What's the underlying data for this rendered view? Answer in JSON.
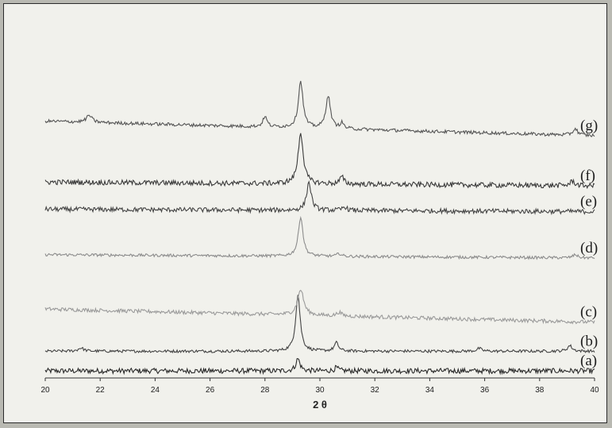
{
  "chart_data": {
    "type": "line",
    "title": "",
    "xlabel": "2 θ",
    "ylabel": "",
    "xlim": [
      20,
      40
    ],
    "xticks": [
      20,
      22,
      24,
      26,
      28,
      30,
      32,
      34,
      36,
      38,
      40
    ],
    "grid": false,
    "legend": "none",
    "series": [
      {
        "name": "(a)",
        "color": "#2a2a2a",
        "baseline": 0.5,
        "noise": 1.1,
        "slope": 0.0,
        "peaks": [
          {
            "x": 29.2,
            "h": 2.6,
            "w": 0.09
          },
          {
            "x": 30.6,
            "h": 0.7,
            "w": 0.08
          }
        ]
      },
      {
        "name": "(b)",
        "color": "#444444",
        "baseline": 4.7,
        "noise": 0.6,
        "slope": 0.0,
        "peaks": [
          {
            "x": 21.3,
            "h": 0.7,
            "w": 0.12
          },
          {
            "x": 29.2,
            "h": 12.0,
            "w": 0.1
          },
          {
            "x": 30.6,
            "h": 1.8,
            "w": 0.09
          },
          {
            "x": 35.8,
            "h": 0.6,
            "w": 0.1
          },
          {
            "x": 39.1,
            "h": 1.2,
            "w": 0.1
          }
        ]
      },
      {
        "name": "(c)",
        "color": "#9a9a9a",
        "baseline": 13.7,
        "noise": 0.8,
        "slope": -2.8,
        "peaks": [
          {
            "x": 29.3,
            "h": 5.5,
            "w": 0.13
          },
          {
            "x": 30.7,
            "h": 0.8,
            "w": 0.1
          }
        ]
      },
      {
        "name": "(d)",
        "color": "#8c8c8c",
        "baseline": 25.3,
        "noise": 0.6,
        "slope": -0.7,
        "peaks": [
          {
            "x": 29.3,
            "h": 8.5,
            "w": 0.1
          },
          {
            "x": 30.7,
            "h": 0.6,
            "w": 0.09
          },
          {
            "x": 39.3,
            "h": 0.7,
            "w": 0.1
          }
        ]
      },
      {
        "name": "(e)",
        "color": "#444444",
        "baseline": 35.0,
        "noise": 1.0,
        "slope": -0.5,
        "peaks": [
          {
            "x": 29.6,
            "h": 6.0,
            "w": 0.1
          },
          {
            "x": 30.9,
            "h": 0.8,
            "w": 0.09
          }
        ]
      },
      {
        "name": "(f)",
        "color": "#3a3a3a",
        "baseline": 40.8,
        "noise": 1.1,
        "slope": -0.8,
        "peaks": [
          {
            "x": 29.3,
            "h": 11.0,
            "w": 0.11
          },
          {
            "x": 30.8,
            "h": 1.5,
            "w": 0.09
          },
          {
            "x": 39.2,
            "h": 1.0,
            "w": 0.1
          }
        ]
      },
      {
        "name": "(g)",
        "color": "#555555",
        "baseline": 53.8,
        "noise": 0.7,
        "slope": -3.1,
        "peaks": [
          {
            "x": 21.6,
            "h": 1.5,
            "w": 0.12
          },
          {
            "x": 28.0,
            "h": 2.2,
            "w": 0.09
          },
          {
            "x": 29.3,
            "h": 10.0,
            "w": 0.1
          },
          {
            "x": 30.3,
            "h": 7.0,
            "w": 0.1
          },
          {
            "x": 30.8,
            "h": 1.2,
            "w": 0.08
          },
          {
            "x": 39.3,
            "h": 1.4,
            "w": 0.1
          }
        ]
      }
    ]
  }
}
